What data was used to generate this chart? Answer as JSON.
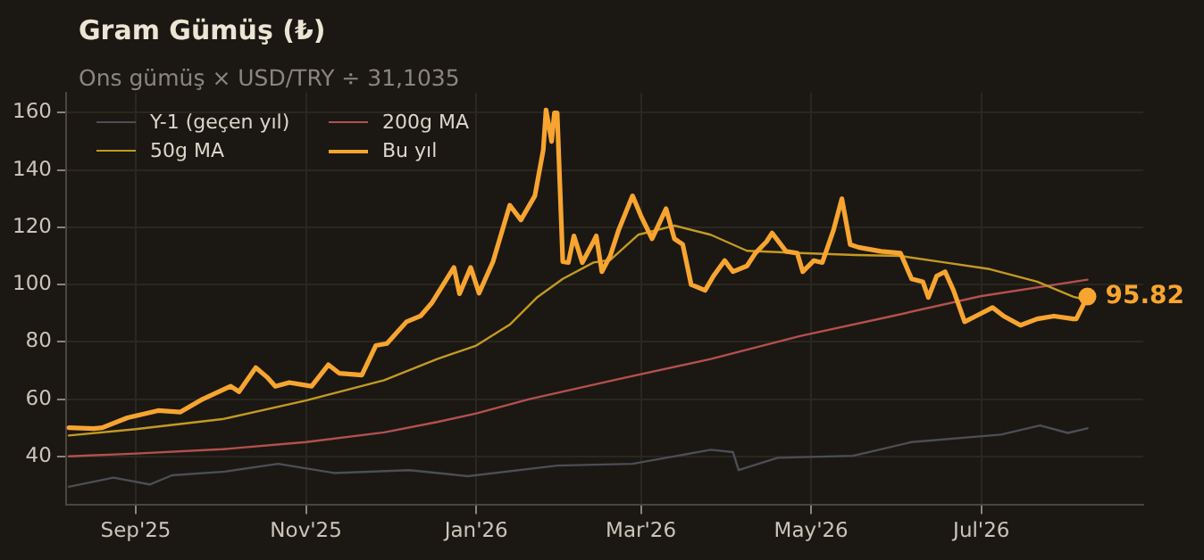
{
  "chart_data": {
    "type": "line",
    "title": "Gram Gümüş (₺)",
    "subtitle": "Ons gümüş × USD/TRY ÷ 31,1035",
    "xlim": [
      "2025-08-07",
      "2026-08-28"
    ],
    "ylim": [
      23,
      167
    ],
    "xticks": [
      {
        "value": "2025-09-01",
        "label": "Sep'25"
      },
      {
        "value": "2025-11-01",
        "label": "Nov'25"
      },
      {
        "value": "2026-01-01",
        "label": "Jan'26"
      },
      {
        "value": "2026-03-01",
        "label": "Mar'26"
      },
      {
        "value": "2026-05-01",
        "label": "May'26"
      },
      {
        "value": "2026-07-01",
        "label": "Jul'26"
      }
    ],
    "yticks": [
      40,
      60,
      80,
      100,
      120,
      140,
      160
    ],
    "grid": true,
    "legend": "top left",
    "annotations": [
      {
        "text": "95.82",
        "x": "2026-08-08",
        "y": 95.82
      }
    ],
    "series": [
      {
        "name": "Y-1 (geçen yıl)",
        "color": "#4b4e56",
        "x": [
          "2025-08-08",
          "2025-08-24",
          "2025-09-06",
          "2025-09-14",
          "2025-10-03",
          "2025-10-22",
          "2025-11-11",
          "2025-12-08",
          "2025-12-29",
          "2026-01-30",
          "2026-02-26",
          "2026-03-26",
          "2026-04-03",
          "2026-04-05",
          "2026-04-19",
          "2026-05-16",
          "2026-06-06",
          "2026-07-08",
          "2026-07-22",
          "2026-08-01",
          "2026-08-08"
        ],
        "values": [
          29.4,
          32.6,
          30.2,
          33.4,
          34.7,
          37.4,
          34.2,
          35.2,
          33.1,
          36.8,
          37.4,
          42.3,
          41.5,
          35.2,
          39.5,
          40.2,
          45,
          47.6,
          50.8,
          48.2,
          49.8
        ]
      },
      {
        "name": "200g MA",
        "color": "#b4504e",
        "x": [
          "2025-08-08",
          "2025-09-01",
          "2025-10-02",
          "2025-11-01",
          "2025-11-29",
          "2025-12-18",
          "2026-01-01",
          "2026-01-20",
          "2026-02-21",
          "2026-03-26",
          "2026-04-27",
          "2026-05-30",
          "2026-07-01",
          "2026-08-08"
        ],
        "values": [
          40,
          41,
          42.5,
          45,
          48.4,
          52,
          55,
          60,
          67,
          74,
          82,
          89,
          96,
          101.7
        ]
      },
      {
        "name": "50g MA",
        "color": "#c49a22",
        "x": [
          "2025-08-08",
          "2025-09-01",
          "2025-10-02",
          "2025-11-01",
          "2025-11-29",
          "2025-12-18",
          "2026-01-01",
          "2026-01-13",
          "2026-01-23",
          "2026-02-01",
          "2026-02-12",
          "2026-02-18",
          "2026-02-28",
          "2026-03-13",
          "2026-03-26",
          "2026-04-08",
          "2026-04-27",
          "2026-05-17",
          "2026-06-02",
          "2026-06-18",
          "2026-07-04",
          "2026-07-21",
          "2026-08-03",
          "2026-08-08"
        ],
        "values": [
          47.3,
          49.5,
          53,
          59.5,
          66.6,
          74,
          78.7,
          86,
          95.7,
          102,
          107.7,
          108.6,
          117.4,
          120.6,
          117.4,
          111.8,
          111,
          110.3,
          110,
          107.7,
          105.4,
          101,
          95.7,
          94.6
        ]
      },
      {
        "name": "Bu yıl",
        "color": "#f7a530",
        "x": [
          "2025-08-08",
          "2025-08-17",
          "2025-08-20",
          "2025-08-29",
          "2025-09-09",
          "2025-09-17",
          "2025-09-25",
          "2025-10-05",
          "2025-10-08",
          "2025-10-14",
          "2025-10-18",
          "2025-10-21",
          "2025-10-26",
          "2025-11-03",
          "2025-11-09",
          "2025-11-13",
          "2025-11-21",
          "2025-11-26",
          "2025-11-30",
          "2025-12-07",
          "2025-12-12",
          "2025-12-16",
          "2025-12-24",
          "2025-12-26",
          "2025-12-30",
          "2026-01-02",
          "2026-01-07",
          "2026-01-13",
          "2026-01-17",
          "2026-01-22",
          "2026-01-25",
          "2026-01-26",
          "2026-01-28",
          "2026-01-29",
          "2026-01-30",
          "2026-02-01",
          "2026-02-03",
          "2026-02-05",
          "2026-02-08",
          "2026-02-12",
          "2026-02-13",
          "2026-02-15",
          "2026-02-18",
          "2026-02-21",
          "2026-02-26",
          "2026-03-01",
          "2026-03-05",
          "2026-03-10",
          "2026-03-13",
          "2026-03-16",
          "2026-03-19",
          "2026-03-24",
          "2026-03-27",
          "2026-03-31",
          "2026-04-03",
          "2026-04-08",
          "2026-04-11",
          "2026-04-15",
          "2026-04-17",
          "2026-04-22",
          "2026-04-26",
          "2026-04-28",
          "2026-05-02",
          "2026-05-05",
          "2026-05-09",
          "2026-05-12",
          "2026-05-15",
          "2026-05-18",
          "2026-05-26",
          "2026-06-02",
          "2026-06-06",
          "2026-06-10",
          "2026-06-12",
          "2026-06-15",
          "2026-06-18",
          "2026-06-21",
          "2026-06-25",
          "2026-06-29",
          "2026-07-05",
          "2026-07-09",
          "2026-07-15",
          "2026-07-21",
          "2026-07-27",
          "2026-08-03",
          "2026-08-04",
          "2026-08-08"
        ],
        "values": [
          50,
          49.7,
          50,
          53.5,
          56,
          55.5,
          60,
          64.5,
          62.6,
          71,
          67.7,
          64.5,
          65.8,
          64.5,
          72,
          69,
          68.4,
          78.7,
          79.4,
          87,
          89,
          93.5,
          106,
          96.8,
          106,
          97,
          108,
          127.7,
          122.6,
          131,
          147,
          161,
          150,
          160,
          160,
          108,
          107.7,
          117,
          107.7,
          115,
          117,
          104.5,
          110,
          119,
          131,
          124,
          116,
          126.5,
          116,
          114,
          100,
          98,
          103,
          108.4,
          104.5,
          106.5,
          111,
          115,
          118,
          111.6,
          111,
          104.5,
          108.4,
          107.7,
          119,
          130,
          114,
          113,
          111.6,
          111,
          102,
          101,
          95.5,
          103,
          104.5,
          98,
          87,
          89,
          92,
          89,
          85.8,
          88,
          89,
          88,
          88,
          95.82
        ]
      }
    ]
  }
}
